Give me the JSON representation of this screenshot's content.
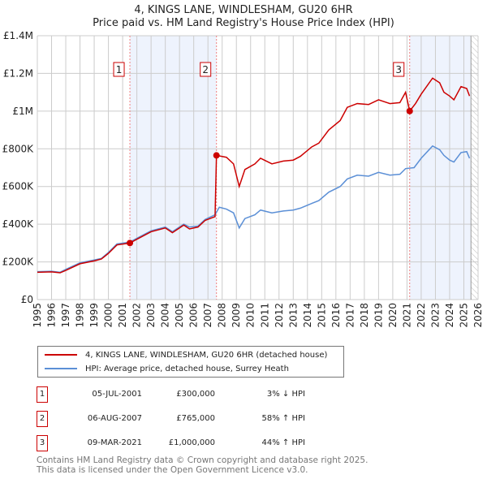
{
  "chart_data": {
    "type": "line",
    "title": "4, KINGS LANE, WINDLESHAM, GU20 6HR",
    "subtitle": "Price paid vs. HM Land Registry's House Price Index (HPI)",
    "xlim": [
      1995,
      2026
    ],
    "ylim": [
      0,
      1400000
    ],
    "x_ticks": [
      "1995",
      "1996",
      "1997",
      "1998",
      "1999",
      "2000",
      "2001",
      "2002",
      "2003",
      "2004",
      "2005",
      "2006",
      "2007",
      "2008",
      "2009",
      "2010",
      "2011",
      "2012",
      "2013",
      "2014",
      "2015",
      "2016",
      "2017",
      "2018",
      "2019",
      "2020",
      "2021",
      "2022",
      "2023",
      "2024",
      "2025",
      "2026"
    ],
    "y_ticks": [
      {
        "v": 0,
        "label": "£0"
      },
      {
        "v": 200000,
        "label": "£200K"
      },
      {
        "v": 400000,
        "label": "£400K"
      },
      {
        "v": 600000,
        "label": "£600K"
      },
      {
        "v": 800000,
        "label": "£800K"
      },
      {
        "v": 1000000,
        "label": "£1M"
      },
      {
        "v": 1200000,
        "label": "£1.2M"
      },
      {
        "v": 1400000,
        "label": "£1.4M"
      }
    ],
    "grid": true,
    "shaded_ranges": [
      [
        2001.51,
        2007.6
      ],
      [
        2021.19,
        2025.5
      ]
    ],
    "future_hatch_from": 2025.5,
    "series": [
      {
        "name": "4, KINGS LANE, WINDLESHAM, GU20 6HR (detached house)",
        "color": "#cc0000",
        "points": [
          [
            1995,
            145000
          ],
          [
            1996,
            147000
          ],
          [
            1996.6,
            142000
          ],
          [
            1997,
            155000
          ],
          [
            1998,
            190000
          ],
          [
            1999,
            205000
          ],
          [
            1999.5,
            215000
          ],
          [
            2000,
            245000
          ],
          [
            2000.6,
            290000
          ],
          [
            2001.51,
            300000
          ],
          [
            2002,
            320000
          ],
          [
            2003,
            360000
          ],
          [
            2004,
            380000
          ],
          [
            2004.5,
            355000
          ],
          [
            2005.3,
            395000
          ],
          [
            2005.7,
            375000
          ],
          [
            2006.3,
            385000
          ],
          [
            2006.8,
            420000
          ],
          [
            2007.5,
            440000
          ],
          [
            2007.6,
            765000
          ],
          [
            2008.3,
            755000
          ],
          [
            2008.8,
            720000
          ],
          [
            2009.2,
            600000
          ],
          [
            2009.6,
            690000
          ],
          [
            2010.3,
            720000
          ],
          [
            2010.7,
            750000
          ],
          [
            2011.5,
            720000
          ],
          [
            2012.3,
            735000
          ],
          [
            2013,
            740000
          ],
          [
            2013.5,
            760000
          ],
          [
            2014.3,
            810000
          ],
          [
            2014.8,
            830000
          ],
          [
            2015.5,
            900000
          ],
          [
            2016.3,
            950000
          ],
          [
            2016.8,
            1020000
          ],
          [
            2017.5,
            1040000
          ],
          [
            2018.3,
            1035000
          ],
          [
            2019,
            1060000
          ],
          [
            2019.8,
            1040000
          ],
          [
            2020.5,
            1045000
          ],
          [
            2020.9,
            1100000
          ],
          [
            2021.19,
            1000000
          ],
          [
            2021.6,
            1040000
          ],
          [
            2022,
            1090000
          ],
          [
            2022.8,
            1175000
          ],
          [
            2023.3,
            1150000
          ],
          [
            2023.6,
            1100000
          ],
          [
            2024,
            1080000
          ],
          [
            2024.3,
            1060000
          ],
          [
            2024.8,
            1130000
          ],
          [
            2025.2,
            1120000
          ],
          [
            2025.4,
            1080000
          ]
        ]
      },
      {
        "name": "HPI: Average price, detached house, Surrey Heath",
        "color": "#5b8fd6",
        "points": [
          [
            1995,
            148000
          ],
          [
            1996,
            150000
          ],
          [
            1996.6,
            145000
          ],
          [
            1997,
            160000
          ],
          [
            1998,
            195000
          ],
          [
            1999,
            210000
          ],
          [
            1999.5,
            218000
          ],
          [
            2000,
            250000
          ],
          [
            2000.6,
            295000
          ],
          [
            2001.51,
            305000
          ],
          [
            2002,
            325000
          ],
          [
            2003,
            365000
          ],
          [
            2004,
            385000
          ],
          [
            2004.5,
            360000
          ],
          [
            2005.3,
            400000
          ],
          [
            2005.7,
            385000
          ],
          [
            2006.3,
            390000
          ],
          [
            2006.8,
            425000
          ],
          [
            2007.5,
            450000
          ],
          [
            2007.8,
            490000
          ],
          [
            2008.3,
            480000
          ],
          [
            2008.8,
            460000
          ],
          [
            2009.2,
            380000
          ],
          [
            2009.6,
            430000
          ],
          [
            2010.3,
            450000
          ],
          [
            2010.7,
            475000
          ],
          [
            2011.5,
            460000
          ],
          [
            2012.3,
            470000
          ],
          [
            2013,
            475000
          ],
          [
            2013.5,
            485000
          ],
          [
            2014.3,
            510000
          ],
          [
            2014.8,
            525000
          ],
          [
            2015.5,
            570000
          ],
          [
            2016.3,
            600000
          ],
          [
            2016.8,
            640000
          ],
          [
            2017.5,
            660000
          ],
          [
            2018.3,
            655000
          ],
          [
            2019,
            675000
          ],
          [
            2019.8,
            660000
          ],
          [
            2020.5,
            665000
          ],
          [
            2020.9,
            695000
          ],
          [
            2021.5,
            700000
          ],
          [
            2022,
            750000
          ],
          [
            2022.8,
            815000
          ],
          [
            2023.3,
            795000
          ],
          [
            2023.6,
            765000
          ],
          [
            2024,
            740000
          ],
          [
            2024.3,
            730000
          ],
          [
            2024.8,
            780000
          ],
          [
            2025.2,
            785000
          ],
          [
            2025.4,
            750000
          ]
        ]
      }
    ],
    "sales": [
      {
        "n": "1",
        "year": 2001.51,
        "price": 300000,
        "date": "05-JUL-2001",
        "price_label": "£300,000",
        "hpi": "3% ↓ HPI"
      },
      {
        "n": "2",
        "year": 2007.6,
        "price": 765000,
        "date": "06-AUG-2007",
        "price_label": "£765,000",
        "hpi": "58% ↑ HPI"
      },
      {
        "n": "3",
        "year": 2021.19,
        "price": 1000000,
        "date": "09-MAR-2021",
        "price_label": "£1,000,000",
        "hpi": "44% ↑ HPI"
      }
    ]
  },
  "footer": {
    "line1": "Contains HM Land Registry data © Crown copyright and database right 2025.",
    "line2": "This data is licensed under the Open Government Licence v3.0."
  }
}
